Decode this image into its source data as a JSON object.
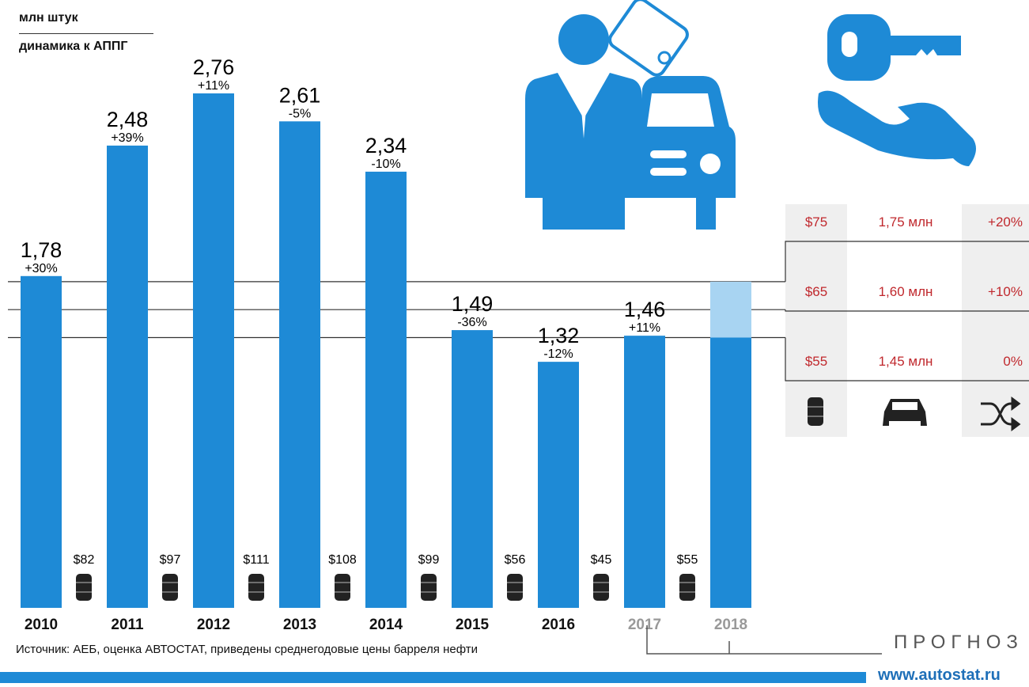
{
  "header": {
    "unit": "млн штук",
    "dynamics": "динамика к АППГ"
  },
  "chart_data": {
    "type": "bar",
    "categories": [
      "2010",
      "2011",
      "2012",
      "2013",
      "2014",
      "2015",
      "2016",
      "2017",
      "2018"
    ],
    "values": [
      1.78,
      2.48,
      2.76,
      2.61,
      2.34,
      1.49,
      1.32,
      1.46,
      null
    ],
    "value_labels": [
      "1,78",
      "2,48",
      "2,76",
      "2,61",
      "2,34",
      "1,49",
      "1,32",
      "1,46",
      ""
    ],
    "change_labels": [
      "+30%",
      "+39%",
      "+11%",
      "-5%",
      "-10%",
      "-36%",
      "-12%",
      "+11%",
      ""
    ],
    "oil_prices": [
      "$82",
      "$97",
      "$111",
      "$108",
      "$99",
      "$56",
      "$45",
      "$55"
    ],
    "forecast_years": [
      "2017",
      "2018"
    ],
    "forecast_2018": {
      "scenarios": [
        {
          "oil": "$75",
          "sales": "1,75 млн",
          "change": "+20%",
          "value": 1.75
        },
        {
          "oil": "$65",
          "sales": "1,60 млн",
          "change": "+10%",
          "value": 1.6
        },
        {
          "oil": "$55",
          "sales": "1,45 млн",
          "change": "0%",
          "value": 1.45
        }
      ]
    },
    "ylim": [
      0,
      2.76
    ],
    "bar_color": "#1e8ad6",
    "forecast_color": "#a8d4f2",
    "scenario_text_color": "#c0282d"
  },
  "footer": {
    "source": "Источник: АЕБ, оценка АВТОСТАТ, приведены среднегодовые цены барреля нефти",
    "forecast_label": "ПРОГНОЗ",
    "site": "www.autostat.ru"
  },
  "icons": [
    "businessman-icon",
    "car-icon",
    "key-in-hand-icon",
    "oil-barrel-icon",
    "shuffle-icon"
  ]
}
